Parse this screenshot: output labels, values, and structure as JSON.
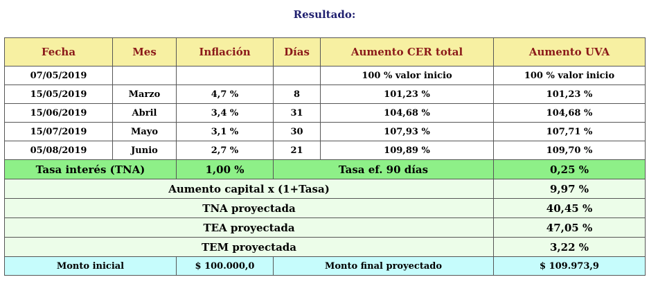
{
  "title": "Resultado:",
  "headers": [
    "Fecha",
    "Mes",
    "Inflación",
    "Días",
    "Aumento CER total",
    "Aumento UVA"
  ],
  "rows": [
    {
      "fecha": "07/05/2019",
      "mes": "",
      "inflacion": "",
      "dias": "",
      "cer": "100 % valor inicio",
      "uva": "100 % valor inicio"
    },
    {
      "fecha": "15/05/2019",
      "mes": "Marzo",
      "inflacion": "4,7 %",
      "dias": "8",
      "cer": "101,23 %",
      "uva": "101,23 %"
    },
    {
      "fecha": "15/06/2019",
      "mes": "Abril",
      "inflacion": "3,4 %",
      "dias": "31",
      "cer": "104,68 %",
      "uva": "104,68 %"
    },
    {
      "fecha": "15/07/2019",
      "mes": "Mayo",
      "inflacion": "3,1 %",
      "dias": "30",
      "cer": "107,93 %",
      "uva": "107,71 %"
    },
    {
      "fecha": "05/08/2019",
      "mes": "Junio",
      "inflacion": "2,7 %",
      "dias": "21",
      "cer": "109,89 %",
      "uva": "109,70 %"
    }
  ],
  "tasa": {
    "label": "Tasa interés (TNA)",
    "value": "1,00 %",
    "ef_label": "Tasa ef. 90 días",
    "ef_value": "0,25 %"
  },
  "summary": [
    {
      "label": "Aumento capital x (1+Tasa)",
      "value": "9,97 %"
    },
    {
      "label": "TNA proyectada",
      "value": "40,45 %"
    },
    {
      "label": "TEA proyectada",
      "value": "47,05 %"
    },
    {
      "label": "TEM proyectada",
      "value": "3,22 %"
    }
  ],
  "monto": {
    "inicial_label": "Monto inicial",
    "inicial_value": "$ 100.000,0",
    "final_label": "Monto final proyectado",
    "final_value": "$ 109.973,9"
  }
}
